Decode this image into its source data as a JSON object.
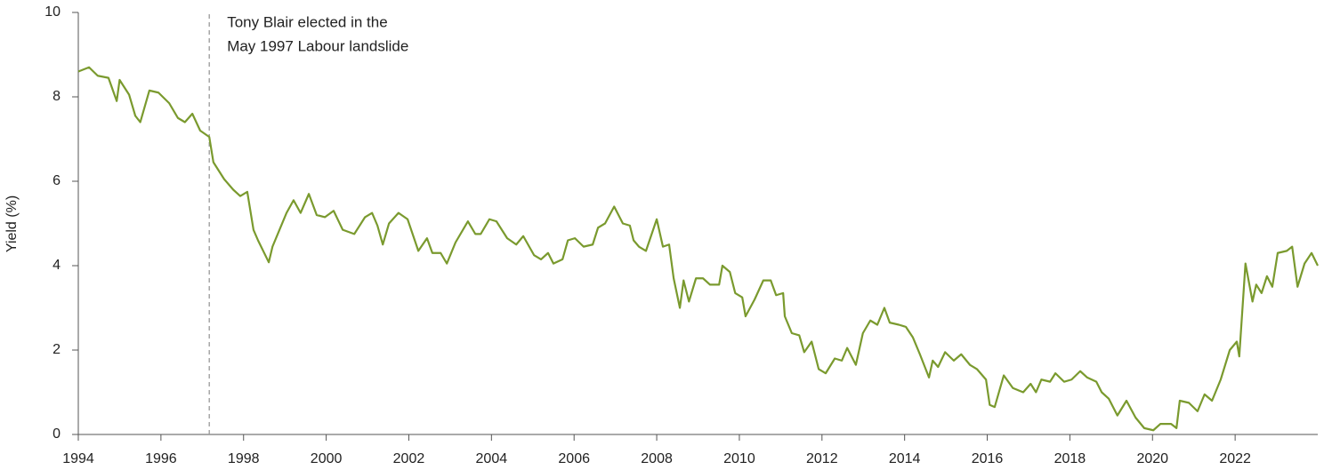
{
  "chart_data": {
    "type": "line",
    "y_label": "Yield (%)",
    "annotation": {
      "x": 1997.17,
      "lines": [
        "Tony Blair elected in the",
        "May 1997 Labour landslide"
      ]
    },
    "x": [
      1994.0,
      1994.26,
      1994.47,
      1994.73,
      1994.93,
      1995.0,
      1995.23,
      1995.38,
      1995.5,
      1995.72,
      1995.94,
      1996.2,
      1996.41,
      1996.58,
      1996.76,
      1996.95,
      1997.17,
      1997.27,
      1997.53,
      1997.75,
      1997.92,
      1998.09,
      1998.24,
      1998.35,
      1998.61,
      1998.7,
      1999.04,
      1999.21,
      1999.38,
      1999.58,
      1999.77,
      1999.97,
      2000.18,
      2000.4,
      2000.68,
      2000.94,
      2001.11,
      2001.24,
      2001.37,
      2001.52,
      2001.75,
      2001.97,
      2002.23,
      2002.44,
      2002.57,
      2002.77,
      2002.92,
      2003.13,
      2003.43,
      2003.61,
      2003.74,
      2003.95,
      2004.12,
      2004.38,
      2004.6,
      2004.77,
      2005.03,
      2005.2,
      2005.37,
      2005.5,
      2005.72,
      2005.85,
      2006.02,
      2006.23,
      2006.45,
      2006.58,
      2006.75,
      2006.97,
      2007.18,
      2007.35,
      2007.44,
      2007.57,
      2007.74,
      2008.0,
      2008.15,
      2008.3,
      2008.41,
      2008.56,
      2008.65,
      2008.78,
      2008.95,
      2009.12,
      2009.29,
      2009.51,
      2009.59,
      2009.77,
      2009.9,
      2010.07,
      2010.15,
      2010.37,
      2010.58,
      2010.76,
      2010.89,
      2011.06,
      2011.1,
      2011.27,
      2011.45,
      2011.57,
      2011.75,
      2011.92,
      2012.09,
      2012.31,
      2012.48,
      2012.61,
      2012.82,
      2012.99,
      2013.17,
      2013.34,
      2013.51,
      2013.64,
      2013.86,
      2014.03,
      2014.2,
      2014.37,
      2014.59,
      2014.68,
      2014.81,
      2014.98,
      2015.19,
      2015.37,
      2015.58,
      2015.75,
      2015.97,
      2016.06,
      2016.18,
      2016.4,
      2016.62,
      2016.87,
      2017.05,
      2017.18,
      2017.31,
      2017.52,
      2017.65,
      2017.86,
      2018.04,
      2018.25,
      2018.42,
      2018.64,
      2018.77,
      2018.94,
      2019.15,
      2019.37,
      2019.59,
      2019.8,
      2020.02,
      2020.19,
      2020.45,
      2020.58,
      2020.66,
      2020.88,
      2021.09,
      2021.26,
      2021.44,
      2021.65,
      2021.87,
      2022.04,
      2022.1,
      2022.25,
      2022.42,
      2022.51,
      2022.64,
      2022.77,
      2022.9,
      2023.03,
      2023.25,
      2023.38,
      2023.51,
      2023.68,
      2023.85,
      2024.0
    ],
    "series": [
      {
        "color": "#7a9a2e",
        "values": [
          8.6,
          8.7,
          8.5,
          8.45,
          7.9,
          8.4,
          8.05,
          7.55,
          7.4,
          8.15,
          8.1,
          7.85,
          7.5,
          7.4,
          7.6,
          7.2,
          7.05,
          6.45,
          6.05,
          5.8,
          5.65,
          5.75,
          4.85,
          4.6,
          4.08,
          4.45,
          5.25,
          5.55,
          5.25,
          5.7,
          5.2,
          5.15,
          5.3,
          4.85,
          4.75,
          5.15,
          5.25,
          4.95,
          4.5,
          5.0,
          5.25,
          5.1,
          4.35,
          4.65,
          4.3,
          4.3,
          4.05,
          4.55,
          5.05,
          4.75,
          4.75,
          5.1,
          5.05,
          4.65,
          4.5,
          4.7,
          4.25,
          4.15,
          4.3,
          4.05,
          4.15,
          4.6,
          4.65,
          4.45,
          4.5,
          4.9,
          5.0,
          5.4,
          5.0,
          4.95,
          4.6,
          4.45,
          4.35,
          5.1,
          4.45,
          4.5,
          3.7,
          3.0,
          3.65,
          3.15,
          3.7,
          3.7,
          3.55,
          3.55,
          4.0,
          3.85,
          3.35,
          3.25,
          2.8,
          3.2,
          3.65,
          3.65,
          3.3,
          3.35,
          2.8,
          2.4,
          2.35,
          1.95,
          2.2,
          1.55,
          1.45,
          1.8,
          1.75,
          2.05,
          1.65,
          2.4,
          2.7,
          2.6,
          3.0,
          2.65,
          2.6,
          2.55,
          2.3,
          1.9,
          1.35,
          1.75,
          1.6,
          1.95,
          1.75,
          1.9,
          1.65,
          1.55,
          1.3,
          0.7,
          0.65,
          1.4,
          1.1,
          1.0,
          1.2,
          1.0,
          1.3,
          1.25,
          1.45,
          1.25,
          1.3,
          1.5,
          1.35,
          1.25,
          1.0,
          0.85,
          0.45,
          0.8,
          0.4,
          0.15,
          0.1,
          0.25,
          0.25,
          0.15,
          0.8,
          0.75,
          0.55,
          0.95,
          0.8,
          1.3,
          2.0,
          2.2,
          1.85,
          4.05,
          3.15,
          3.55,
          3.35,
          3.75,
          3.5,
          4.3,
          4.35,
          4.45,
          3.5,
          4.05,
          4.3,
          4.0
        ]
      }
    ],
    "xlim": [
      1994,
      2024
    ],
    "xticks": [
      1994,
      1996,
      1998,
      2000,
      2002,
      2004,
      2006,
      2008,
      2010,
      2012,
      2014,
      2016,
      2018,
      2020,
      2022
    ],
    "ylim": [
      0,
      10
    ],
    "yticks": [
      0,
      2,
      4,
      6,
      8,
      10
    ],
    "grid": false
  }
}
